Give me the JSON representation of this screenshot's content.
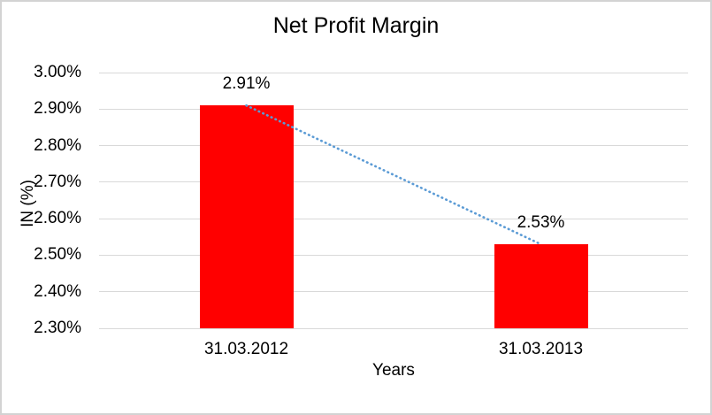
{
  "chart_data": {
    "type": "bar",
    "title": "Net Profit Margin",
    "categories": [
      "31.03.2012",
      "31.03.2013"
    ],
    "series": [
      {
        "name": "Net Profit Margin",
        "values": [
          2.91,
          2.53
        ]
      }
    ],
    "data_labels": [
      "2.91%",
      "2.53%"
    ],
    "xlabel": "Years",
    "ylabel": "IN (%)",
    "ylim": [
      2.3,
      3.0
    ],
    "ytick_step": 0.1,
    "yticks": [
      {
        "value": 3.0,
        "label": "3.00%"
      },
      {
        "value": 2.9,
        "label": "2.90%"
      },
      {
        "value": 2.8,
        "label": "2.80%"
      },
      {
        "value": 2.7,
        "label": "2.70%"
      },
      {
        "value": 2.6,
        "label": "2.60%"
      },
      {
        "value": 2.5,
        "label": "2.50%"
      },
      {
        "value": 2.4,
        "label": "2.40%"
      },
      {
        "value": 2.3,
        "label": "2.30%"
      }
    ],
    "grid": true,
    "legend": false,
    "colors": {
      "bar": "#ff0000",
      "trendline": "#5b9bd5",
      "gridline": "#d9d9d9",
      "text": "#000000",
      "canvas_border": "#d3d3d3"
    },
    "trendline": {
      "type": "linear",
      "style": "dotted",
      "from_value": 2.91,
      "to_value": 2.53
    }
  }
}
